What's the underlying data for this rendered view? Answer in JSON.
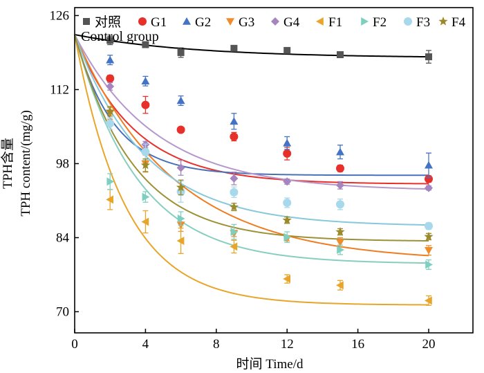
{
  "chart_data": {
    "type": "scatter",
    "title": "",
    "xlabel": "时间 Time/d",
    "ylabel_lines": [
      "TPH含量",
      "TPH content/(mg/g)"
    ],
    "xlim": [
      0,
      22.5
    ],
    "ylim": [
      66,
      127.5
    ],
    "xticks": [
      0,
      4,
      8,
      12,
      16,
      20
    ],
    "yticks": [
      70,
      84,
      98,
      112,
      126
    ],
    "legend_note": "Control group",
    "legend_position": "top",
    "series": [
      {
        "name": "对照",
        "color": "#555555",
        "marker": "square",
        "x": [
          2,
          4,
          6,
          9,
          12,
          15,
          20
        ],
        "y": [
          121.3,
          120.5,
          119.0,
          119.8,
          119.4,
          118.6,
          118.2
        ],
        "err": [
          0.8,
          0.5,
          0.9,
          0.5,
          0.4,
          0.5,
          1.2
        ],
        "fit": {
          "line_color": "#000000",
          "start": 122.4,
          "end": 118.2,
          "shape": 0.15
        }
      },
      {
        "name": "G1",
        "color": "#e8302a",
        "marker": "circle",
        "x": [
          2,
          4,
          6,
          9,
          12,
          15,
          20
        ],
        "y": [
          114.1,
          109.1,
          104.4,
          103.1,
          99.9,
          97.1,
          95.1
        ],
        "err": [
          0.6,
          1.6,
          0.3,
          0.8,
          1.2,
          0.6,
          0.6
        ],
        "fit": {
          "line_color": "#e8302a",
          "start": 122.4,
          "end": 94.2,
          "shape": 0.3
        }
      },
      {
        "name": "G2",
        "color": "#4472c4",
        "marker": "triangle-up",
        "x": [
          2,
          4,
          6,
          9,
          12,
          15,
          20
        ],
        "y": [
          117.6,
          113.6,
          109.9,
          106.0,
          101.9,
          100.2,
          97.7
        ],
        "err": [
          0.9,
          0.9,
          0.9,
          1.5,
          1.2,
          1.3,
          2.3
        ],
        "fit": {
          "line_color": "#4a70b8",
          "start": 122.4,
          "end": 95.8,
          "shape": 0.45
        }
      },
      {
        "name": "G3",
        "color": "#f08c2c",
        "marker": "triangle-down",
        "x": [
          2,
          4,
          6,
          9,
          12,
          15,
          20
        ],
        "y": [
          107.5,
          98.0,
          86.4,
          84.8,
          83.8,
          83.1,
          81.6
        ],
        "err": [
          1.1,
          1.6,
          1.2,
          0.6,
          0.4,
          0.9,
          0.9
        ],
        "fit": {
          "line_color": "#f07c22",
          "start": 122.4,
          "end": 80.6,
          "shape": 0.18
        }
      },
      {
        "name": "G4",
        "color": "#a585c0",
        "marker": "diamond",
        "x": [
          2,
          4,
          6,
          9,
          12,
          15,
          20
        ],
        "y": [
          112.6,
          101.6,
          97.2,
          95.2,
          94.6,
          93.9,
          93.4
        ],
        "err": [
          0.7,
          0.6,
          1.4,
          1.2,
          0.5,
          0.7,
          0.4
        ],
        "fit": {
          "line_color": "#b597cc",
          "start": 122.4,
          "end": 93.2,
          "shape": 0.22
        }
      },
      {
        "name": "F1",
        "color": "#e8a52a",
        "marker": "triangle-left",
        "x": [
          2,
          4,
          6,
          9,
          12,
          15,
          20
        ],
        "y": [
          91.2,
          87.0,
          83.4,
          82.3,
          76.2,
          75.0,
          72.1
        ],
        "err": [
          1.9,
          2.1,
          2.4,
          1.2,
          0.8,
          0.9,
          0.9
        ],
        "fit": {
          "line_color": "#e8a52a",
          "start": 122.4,
          "end": 71.3,
          "shape": 0.35
        }
      },
      {
        "name": "F2",
        "color": "#7fcfc0",
        "marker": "triangle-right",
        "x": [
          2,
          4,
          6,
          9,
          12,
          15,
          20
        ],
        "y": [
          94.6,
          91.7,
          87.6,
          85.1,
          84.1,
          81.7,
          78.9
        ],
        "err": [
          1.5,
          1.0,
          1.3,
          1.4,
          1.0,
          0.9,
          0.9
        ],
        "fit": {
          "line_color": "#86cfbe",
          "start": 122.4,
          "end": 79.2,
          "shape": 0.28
        }
      },
      {
        "name": "F3",
        "color": "#a8d8ec",
        "marker": "circle",
        "x": [
          2,
          4,
          6,
          9,
          12,
          15,
          20
        ],
        "y": [
          105.6,
          100.2,
          92.7,
          92.6,
          90.6,
          90.3,
          86.2
        ],
        "err": [
          1.1,
          1.5,
          2.0,
          1.0,
          0.9,
          1.0,
          0.6
        ],
        "fit": {
          "line_color": "#86c8dc",
          "start": 122.4,
          "end": 86.4,
          "shape": 0.25
        }
      },
      {
        "name": "F4",
        "color": "#9a8a2a",
        "marker": "star",
        "x": [
          2,
          4,
          6,
          9,
          12,
          15,
          20
        ],
        "y": [
          107.9,
          97.7,
          93.5,
          89.8,
          87.3,
          85.1,
          84.2
        ],
        "err": [
          0.9,
          1.2,
          1.4,
          0.7,
          0.6,
          0.6,
          0.6
        ],
        "fit": {
          "line_color": "#9d9137",
          "start": 122.4,
          "end": 83.4,
          "shape": 0.3
        }
      }
    ]
  }
}
